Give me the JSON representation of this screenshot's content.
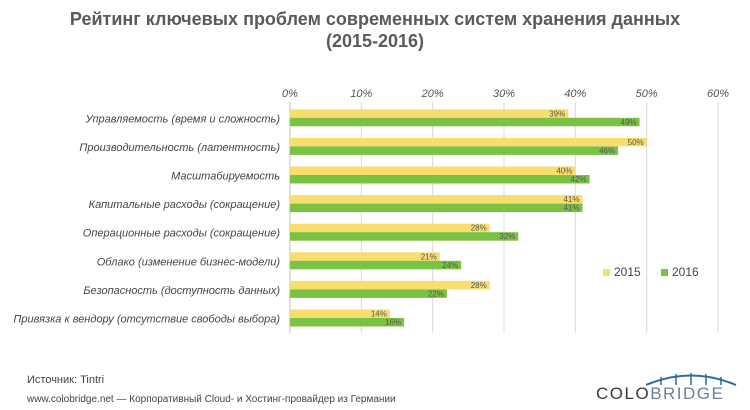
{
  "chart_data": {
    "type": "bar",
    "orientation": "horizontal",
    "title": [
      "Рейтинг ключевых проблем современных систем хранения данных",
      "(2015-2016)"
    ],
    "categories": [
      "Управляемость (время и сложность)",
      "Производительность (латентность)",
      "Масштабируемость",
      "Капитальные расходы (сокращение)",
      "Операционные расходы (сокращение)",
      "Облако (изменение бизнес-модели)",
      "Безопасность (доступность данных)",
      "Привязка к вендору (отсутствие свободы выбора)"
    ],
    "series": [
      {
        "name": "2015",
        "color": "#f7de6f",
        "values": [
          39,
          50,
          40,
          41,
          28,
          21,
          28,
          14
        ]
      },
      {
        "name": "2016",
        "color": "#7cc242",
        "values": [
          49,
          46,
          42,
          41,
          32,
          24,
          22,
          16
        ]
      }
    ],
    "xlim": [
      0,
      60
    ],
    "xticks": [
      "0%",
      "10%",
      "20%",
      "30%",
      "40%",
      "50%",
      "60%"
    ],
    "value_suffix": "%",
    "grid": true,
    "legend_position": "right"
  },
  "footer": {
    "source": "Источник: Tintri",
    "site": "www.colobridge.net — Корпоративный Cloud- и Хостинг-провайдер из Германии"
  },
  "logo": {
    "part1": "COLO",
    "part2": "BRIDGE",
    "icon": "bridge-arch-icon"
  }
}
